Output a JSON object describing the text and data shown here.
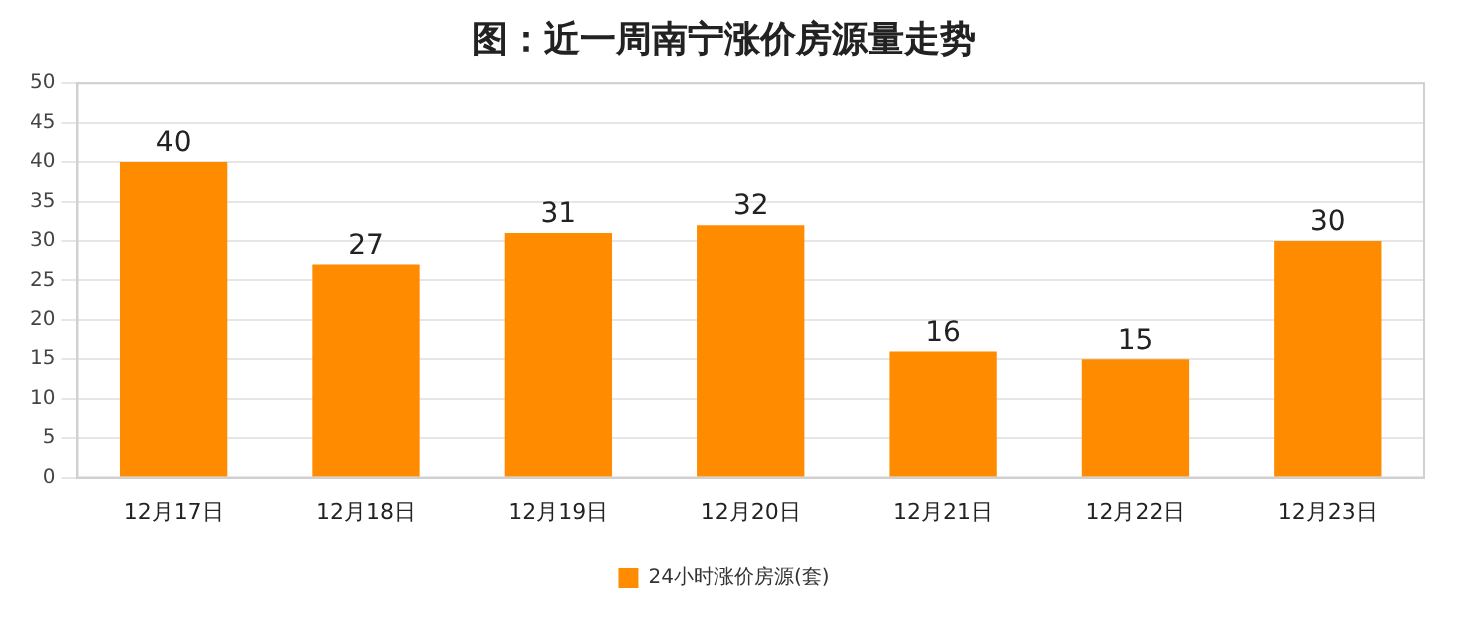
{
  "chart_data": {
    "type": "bar",
    "title": "图：近一周南宁涨价房源量走势",
    "categories": [
      "12月17日",
      "12月18日",
      "12月19日",
      "12月20日",
      "12月21日",
      "12月22日",
      "12月23日"
    ],
    "series": [
      {
        "name": "24小时涨价房源(套)",
        "color": "#ff8c00",
        "values": [
          40,
          27,
          31,
          32,
          16,
          15,
          30
        ]
      }
    ],
    "ylim": [
      0,
      50
    ],
    "yticks": [
      0,
      5,
      10,
      15,
      20,
      25,
      30,
      35,
      40,
      45,
      50
    ],
    "grid": "y",
    "legend": "bottom",
    "data_labels": true
  }
}
